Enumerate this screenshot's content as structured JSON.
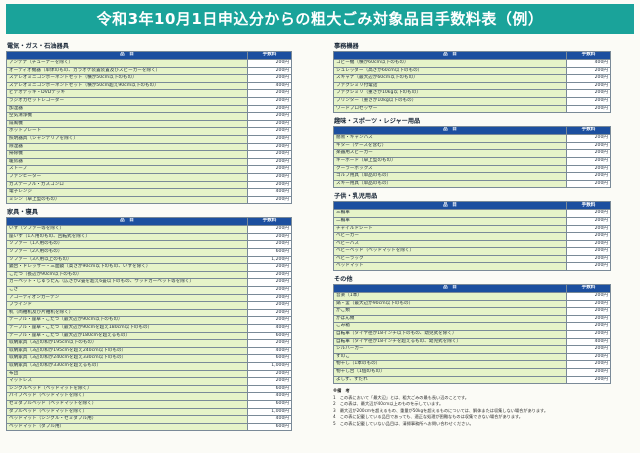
{
  "title": "令和3年10月1日申込分からの粗大ごみ対象品目手数料表（例）",
  "headers": {
    "item": "品　目",
    "fee": "手数料"
  },
  "left_sections": [
    {
      "name": "電気・ガス・石油器具",
      "rows": [
        [
          "アンテナ（チューナーを除く）",
          "200円"
        ],
        [
          "オーディオ機器（単体のもの、カラオケ装置装置及びスピーカーを除く）",
          "200円"
        ],
        [
          "ステレオミニコンポーネントセット（横が50cm以下のもの）",
          "200円"
        ],
        [
          "ステレオミニコンポーネントセット（横が50cm超え90cm以下のもの）",
          "400円"
        ],
        [
          "ビデオデッキ・DVDデッキ",
          "200円"
        ],
        [
          "ラジオカセットレコーダー",
          "200円"
        ],
        [
          "加湿器",
          "200円"
        ],
        [
          "空気清浄機",
          "200円"
        ],
        [
          "扇風機",
          "200円"
        ],
        [
          "ホットプレート",
          "200円"
        ],
        [
          "照明器具（シャンデリアを除く）",
          "200円"
        ],
        [
          "除湿器",
          "200円"
        ],
        [
          "掃除機",
          "200円"
        ],
        [
          "暖房器",
          "200円"
        ],
        [
          "ストーブ",
          "200円"
        ],
        [
          "ファンヒーター",
          "200円"
        ],
        [
          "ガステーブル・ガスコンロ",
          "200円"
        ],
        [
          "電子レンジ",
          "400円"
        ],
        [
          "ミシン（卓上型のもの）",
          "200円"
        ]
      ]
    },
    {
      "name": "家具・寝具",
      "rows": [
        [
          "いす（ソファー等を除く）",
          "200円"
        ],
        [
          "座いす（1人用のもの、回転式を除く）",
          "200円"
        ],
        [
          "ソファー（1人用のもの）",
          "200円"
        ],
        [
          "ソファー（2人用のもの）",
          "600円"
        ],
        [
          "ソファー（3人用以上のもの）",
          "1,200円"
        ],
        [
          "鏡台・ドレッサー・三面鏡（高さが90cm以下のもの、いすを除く）",
          "200円"
        ],
        [
          "こたつ（長辺が90cm以下のもの）",
          "200円"
        ],
        [
          "カーペット・じゅうたん（広さが2畳を超え6畳以下のもの、ウッドカーペット等を除く）",
          "200円"
        ],
        [
          "こざ",
          "200円"
        ],
        [
          "アコーディオンカーテン",
          "200円"
        ],
        [
          "ブラインド",
          "200円"
        ],
        [
          "机（両袖机及び片袖机を除く）",
          "200円"
        ],
        [
          "テーブル・座卓・こたつ（最大辺が90cm以下のもの）",
          "200円"
        ],
        [
          "テーブル・座卓・こたつ（最大辺が90cmを超え180cm以下のもの）",
          "400円"
        ],
        [
          "テーブル・座卓・こたつ（最大辺が180cmを超えるもの）",
          "600円"
        ],
        [
          "収納家具（3辺の和が195cm以下のもの）",
          "200円"
        ],
        [
          "収納家具（3辺の和が195cmを超え240cm以下のもの）",
          "400円"
        ],
        [
          "収納家具（3辺の和が240cmを超え330cm以下のもの）",
          "600円"
        ],
        [
          "収納家具（3辺の和が330cmを超えるもの）",
          "1,000円"
        ],
        [
          "布団",
          "200円"
        ],
        [
          "マットレス",
          "200円"
        ],
        [
          "シングルベッド（ベッドマットを除く）",
          "600円"
        ],
        [
          "パイプベッド（ベッドマットを除く）",
          "400円"
        ],
        [
          "セミダブルベッド（ベッドマットを除く）",
          "600円"
        ],
        [
          "ダブルベッド（ベッドマットを除く）",
          "1,000円"
        ],
        [
          "ベッドマット（シングル・セミダブル用）",
          "400円"
        ],
        [
          "ベッドマット（ダブル用）",
          "600円"
        ]
      ]
    }
  ],
  "right_sections": [
    {
      "name": "事務機器",
      "rows": [
        [
          "コピー機（横が60cm以下のもの）",
          "400円"
        ],
        [
          "シュレッダー（高さが60cm以下のもの）",
          "200円"
        ],
        [
          "スキャナ（最大辺が60cm以下のもの）",
          "200円"
        ],
        [
          "ファクシミリ付電話",
          "200円"
        ],
        [
          "ファクシミリ（重さが10kg以下のもの）",
          "200円"
        ],
        [
          "プリンター（重さが10kg以下のもの）",
          "200円"
        ],
        [
          "ワードプロセッサー",
          "200円"
        ]
      ]
    },
    {
      "name": "趣味・スポーツ・レジャー用品",
      "rows": [
        [
          "簡易・キャンバス",
          "200円"
        ],
        [
          "ギター（ケースを含む）",
          "200円"
        ],
        [
          "楽器用スピーカー",
          "200円"
        ],
        [
          "キーボード（卓上型のもの）",
          "200円"
        ],
        [
          "クーラーボックス",
          "200円"
        ],
        [
          "ゴルフ用具（単品のもの）",
          "200円"
        ],
        [
          "スキー用具（単品のもの）",
          "200円"
        ]
      ]
    },
    {
      "name": "子供・乳児用品",
      "rows": [
        [
          "三輪車",
          "200円"
        ],
        [
          "二輪車",
          "200円"
        ],
        [
          "チャイルドシート",
          "200円"
        ],
        [
          "ベビーカー",
          "200円"
        ],
        [
          "ベビーバス",
          "200円"
        ],
        [
          "ベビーベッド（ベッドマットを除く）",
          "200円"
        ],
        [
          "ベビーラック",
          "200円"
        ],
        [
          "ベッドマット",
          "200円"
        ]
      ]
    },
    {
      "name": "その他",
      "rows": [
        [
          "音楽（1本）",
          "200円"
        ],
        [
          "鍋・釜（最大辺が90cm以下のもの）",
          "200円"
        ],
        [
          "かご類",
          "200円"
        ],
        [
          "かばん類",
          "200円"
        ],
        [
          "ごみ箱",
          "200円"
        ],
        [
          "自転車（タイヤ径が18インチ以下のもの、幼児式を除く）",
          "200円"
        ],
        [
          "自転車（タイヤ径が18インチを超えるもの、幼児式を除く）",
          "400円"
        ],
        [
          "シルバーカー",
          "200円"
        ],
        [
          "すのこ",
          "200円"
        ],
        [
          "物干し（1本のもの）",
          "200円"
        ],
        [
          "物干し台（1個のもの）",
          "200円"
        ],
        [
          "よしず、すだれ",
          "200円"
        ]
      ]
    }
  ],
  "notes": {
    "heading": "※備　考",
    "lines": [
      "1　この表において「最大辺」とは、粗大ごみの最も長い辺のことです。",
      "2　この表は、最大辺が40cm以上のものを示しています。",
      "3　最大辺が200cmを超えるもの、重量が50kgを超えるものについては、解体または収集しない場合があります。",
      "4　この表に記載している品目であっても、適正な処理が困難なものは収集できない場合があります。",
      "5　この表に記載していない品目は、清掃事務所へお問い合わせください。"
    ]
  }
}
